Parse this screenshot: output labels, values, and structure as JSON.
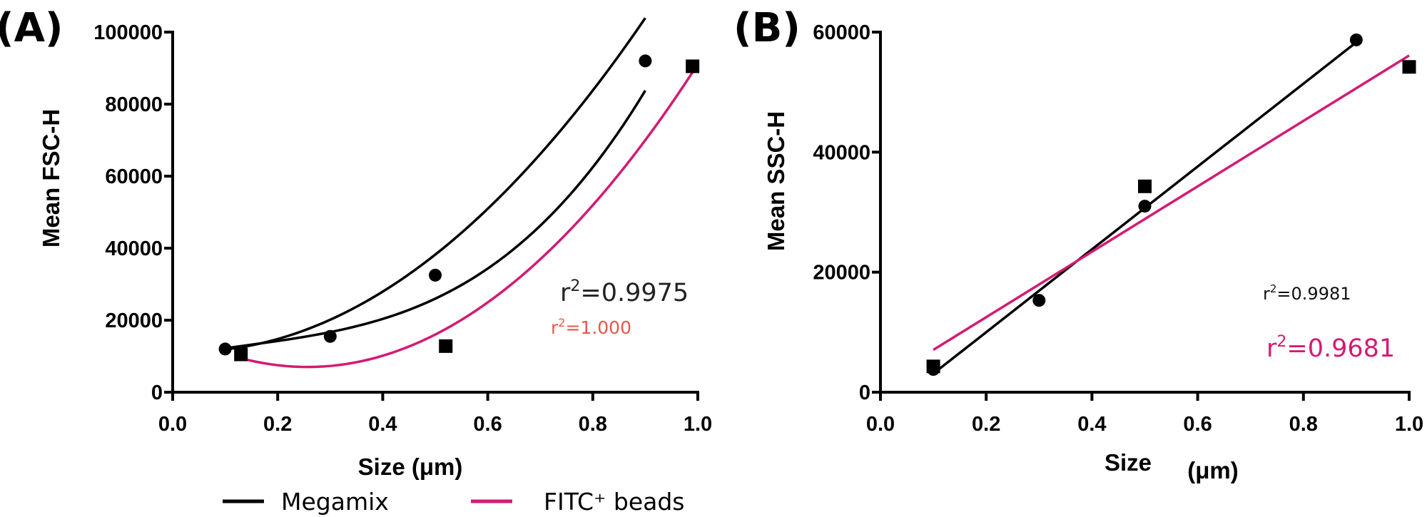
{
  "figure": {
    "legend": [
      {
        "label": "Megamix",
        "color": "#000000"
      },
      {
        "label": "FITC⁺ beads",
        "color": "#d41a73"
      }
    ]
  },
  "chart_data": [
    {
      "type": "scatter",
      "panel_label": "(A)",
      "xlabel": "Size  (μm)",
      "ylabel": "Mean FSC-H",
      "xlim": [
        0,
        1.0
      ],
      "ylim": [
        0,
        100000
      ],
      "xticks": [
        "0.0",
        "0.2",
        "0.4",
        "0.6",
        "0.8",
        "1.0"
      ],
      "yticks": [
        "0",
        "20000",
        "40000",
        "60000",
        "80000",
        "100000"
      ],
      "series": [
        {
          "name": "Megamix",
          "marker": "circle",
          "color": "#000000",
          "x": [
            0.1,
            0.3,
            0.5,
            0.9
          ],
          "y": [
            12000,
            15500,
            32500,
            92000
          ]
        },
        {
          "name": "FITC⁺ beads",
          "marker": "square",
          "color": "#d41a73",
          "x": [
            0.13,
            0.52,
            0.99
          ],
          "y": [
            10500,
            12800,
            90500
          ]
        }
      ],
      "fits": [
        {
          "series": "Megamix",
          "kind": "quadratic",
          "color": "#000000",
          "coefficients": [
            11450.2,
            -8010.4,
            123046.9
          ],
          "x_range": [
            0.1,
            0.9
          ]
        },
        {
          "series": "Megamix",
          "kind": "cubic",
          "color": "#000000",
          "coefficients": [
            9731.3,
            28828.1,
            -57812.5,
            130208.3
          ],
          "x_range": [
            0.1,
            0.9
          ]
        },
        {
          "series": "FITC⁺ beads",
          "kind": "quadratic",
          "color": "#d41a73",
          "coefficients": [
            17036.0,
            -78154.9,
            152211.7
          ],
          "x_range": [
            0.13,
            0.99
          ]
        }
      ],
      "annotations": [
        {
          "text_base": "r",
          "sup": "2",
          "text_rest": "=0.9975",
          "color": "#222222"
        },
        {
          "text_base": "r",
          "sup": "2",
          "text_rest": "=1.000",
          "color": "#e8554a"
        }
      ]
    },
    {
      "type": "scatter",
      "panel_label": "(B)",
      "xlabel": "Size",
      "xlabel_unit": "(μm)",
      "ylabel": "Mean SSC-H",
      "xlim": [
        0,
        1.0
      ],
      "ylim": [
        0,
        60000
      ],
      "xticks": [
        "0.0",
        "0.2",
        "0.4",
        "0.6",
        "0.8",
        "1.0"
      ],
      "yticks": [
        "0",
        "20000",
        "40000",
        "60000"
      ],
      "series": [
        {
          "name": "Megamix",
          "marker": "circle",
          "color": "#000000",
          "x": [
            0.1,
            0.3,
            0.5,
            0.9
          ],
          "y": [
            3800,
            15300,
            31000,
            58700
          ]
        },
        {
          "name": "FITC⁺ beads",
          "marker": "square",
          "color": "#d41a73",
          "x": [
            0.1,
            0.5,
            1.0
          ],
          "y": [
            4300,
            34300,
            54200
          ]
        }
      ],
      "fits": [
        {
          "series": "Megamix",
          "kind": "linear",
          "color": "#000000",
          "coefficients": [
            -3800,
            69000
          ],
          "x_range": [
            0.1,
            0.9
          ]
        },
        {
          "series": "FITC⁺ beads",
          "kind": "linear",
          "color": "#d41a73",
          "coefficients": [
            1600,
            54500
          ],
          "x_range": [
            0.1,
            1.0
          ]
        }
      ],
      "annotations": [
        {
          "text_base": "r",
          "sup": "2",
          "text_rest": "=0.9981",
          "color": "#111111"
        },
        {
          "text_base": "r",
          "sup": "2",
          "text_rest": "=0.9681",
          "color": "#d41a73"
        }
      ]
    }
  ]
}
